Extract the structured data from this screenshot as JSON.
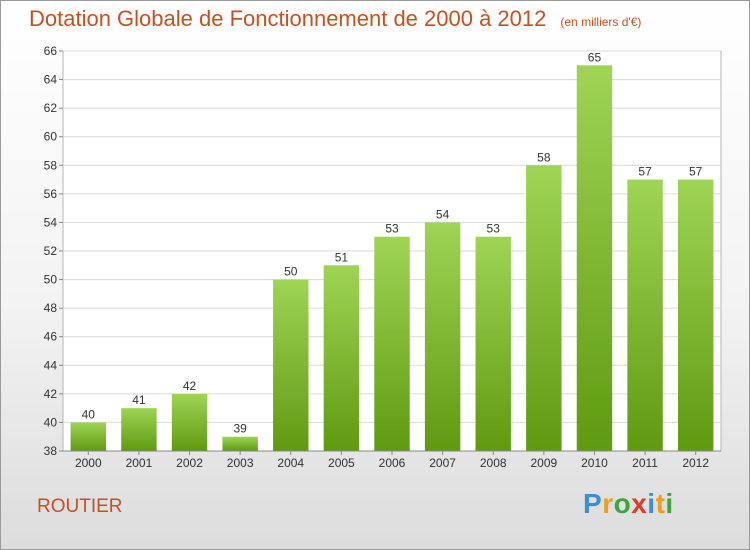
{
  "chart_data": {
    "type": "bar",
    "title": "Dotation Globale de Fonctionnement de 2000 à 2012",
    "subtitle": "(en milliers d'€)",
    "categories": [
      "2000",
      "2001",
      "2002",
      "2003",
      "2004",
      "2005",
      "2006",
      "2007",
      "2008",
      "2009",
      "2010",
      "2011",
      "2012"
    ],
    "values": [
      40,
      41,
      42,
      39,
      50,
      51,
      53,
      54,
      53,
      58,
      65,
      57,
      57
    ],
    "ylim": [
      38,
      66
    ],
    "yticks": [
      38,
      40,
      42,
      44,
      46,
      48,
      50,
      52,
      54,
      56,
      58,
      60,
      62,
      64,
      66
    ],
    "grid": true,
    "bar_color_light": "#9fd455",
    "bar_color_dark": "#5f9a10"
  },
  "footer": {
    "commune": "ROUTIER",
    "logo_letters": [
      "P",
      "r",
      "o",
      "x",
      "i",
      "t",
      "i"
    ],
    "logo_colors": [
      "#3a8fd8",
      "#f29b1d",
      "#39a839",
      "#e03a2a",
      "#3a8fd8",
      "#f29b1d",
      "#39a839"
    ]
  }
}
